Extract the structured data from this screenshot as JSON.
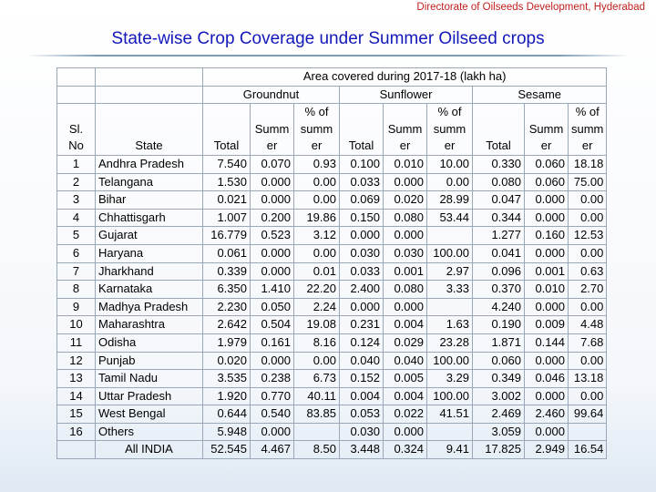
{
  "header": {
    "organization": "Directorate of Oilseeds Development, Hyderabad",
    "title": "State-wise Crop Coverage under Summer Oilseed crops"
  },
  "table": {
    "area_caption": "Area covered during 2017-18 (lakh ha)",
    "crops": [
      "Groundnut",
      "Sunflower",
      "Sesame"
    ],
    "col_headers": {
      "sl": [
        "Sl.",
        "No"
      ],
      "state": "State",
      "total": "Total",
      "summer": [
        "Summ",
        "er"
      ],
      "pct": [
        "% of",
        "summ",
        "er"
      ],
      "pct_first": [
        "% of",
        "summ",
        "er"
      ]
    },
    "rows": [
      {
        "no": "1",
        "state": "Andhra Pradesh",
        "g_total": "7.540",
        "g_summer": "0.070",
        "g_pct": "0.93",
        "s_total": "0.100",
        "s_summer": "0.010",
        "s_pct": "10.00",
        "se_total": "0.330",
        "se_summer": "0.060",
        "se_pct": "18.18"
      },
      {
        "no": "2",
        "state": "Telangana",
        "g_total": "1.530",
        "g_summer": "0.000",
        "g_pct": "0.00",
        "s_total": "0.033",
        "s_summer": "0.000",
        "s_pct": "0.00",
        "se_total": "0.080",
        "se_summer": "0.060",
        "se_pct": "75.00"
      },
      {
        "no": "3",
        "state": "Bihar",
        "g_total": "0.021",
        "g_summer": "0.000",
        "g_pct": "0.00",
        "s_total": "0.069",
        "s_summer": "0.020",
        "s_pct": "28.99",
        "se_total": "0.047",
        "se_summer": "0.000",
        "se_pct": "0.00"
      },
      {
        "no": "4",
        "state": "Chhattisgarh",
        "g_total": "1.007",
        "g_summer": "0.200",
        "g_pct": "19.86",
        "s_total": "0.150",
        "s_summer": "0.080",
        "s_pct": "53.44",
        "se_total": "0.344",
        "se_summer": "0.000",
        "se_pct": "0.00"
      },
      {
        "no": "5",
        "state": "Gujarat",
        "g_total": "16.779",
        "g_summer": "0.523",
        "g_pct": "3.12",
        "s_total": "0.000",
        "s_summer": "0.000",
        "s_pct": "",
        "se_total": "1.277",
        "se_summer": "0.160",
        "se_pct": "12.53"
      },
      {
        "no": "6",
        "state": "Haryana",
        "g_total": "0.061",
        "g_summer": "0.000",
        "g_pct": "0.00",
        "s_total": "0.030",
        "s_summer": "0.030",
        "s_pct": "100.00",
        "se_total": "0.041",
        "se_summer": "0.000",
        "se_pct": "0.00"
      },
      {
        "no": "7",
        "state": "Jharkhand",
        "g_total": "0.339",
        "g_summer": "0.000",
        "g_pct": "0.01",
        "s_total": "0.033",
        "s_summer": "0.001",
        "s_pct": "2.97",
        "se_total": "0.096",
        "se_summer": "0.001",
        "se_pct": "0.63"
      },
      {
        "no": "8",
        "state": "Karnataka",
        "g_total": "6.350",
        "g_summer": "1.410",
        "g_pct": "22.20",
        "s_total": "2.400",
        "s_summer": "0.080",
        "s_pct": "3.33",
        "se_total": "0.370",
        "se_summer": "0.010",
        "se_pct": "2.70"
      },
      {
        "no": "9",
        "state": "Madhya Pradesh",
        "g_total": "2.230",
        "g_summer": "0.050",
        "g_pct": "2.24",
        "s_total": "0.000",
        "s_summer": "0.000",
        "s_pct": "",
        "se_total": "4.240",
        "se_summer": "0.000",
        "se_pct": "0.00"
      },
      {
        "no": "10",
        "state": "Maharashtra",
        "g_total": "2.642",
        "g_summer": "0.504",
        "g_pct": "19.08",
        "s_total": "0.231",
        "s_summer": "0.004",
        "s_pct": "1.63",
        "se_total": "0.190",
        "se_summer": "0.009",
        "se_pct": "4.48"
      },
      {
        "no": "11",
        "state": "Odisha",
        "g_total": "1.979",
        "g_summer": "0.161",
        "g_pct": "8.16",
        "s_total": "0.124",
        "s_summer": "0.029",
        "s_pct": "23.28",
        "se_total": "1.871",
        "se_summer": "0.144",
        "se_pct": "7.68"
      },
      {
        "no": "12",
        "state": "Punjab",
        "g_total": "0.020",
        "g_summer": "0.000",
        "g_pct": "0.00",
        "s_total": "0.040",
        "s_summer": "0.040",
        "s_pct": "100.00",
        "se_total": "0.060",
        "se_summer": "0.000",
        "se_pct": "0.00"
      },
      {
        "no": "13",
        "state": "Tamil Nadu",
        "g_total": "3.535",
        "g_summer": "0.238",
        "g_pct": "6.73",
        "s_total": "0.152",
        "s_summer": "0.005",
        "s_pct": "3.29",
        "se_total": "0.349",
        "se_summer": "0.046",
        "se_pct": "13.18"
      },
      {
        "no": "14",
        "state": "Uttar Pradesh",
        "g_total": "1.920",
        "g_summer": "0.770",
        "g_pct": "40.11",
        "s_total": "0.004",
        "s_summer": "0.004",
        "s_pct": "100.00",
        "se_total": "3.002",
        "se_summer": "0.000",
        "se_pct": "0.00"
      },
      {
        "no": "15",
        "state": "West Bengal",
        "g_total": "0.644",
        "g_summer": "0.540",
        "g_pct": "83.85",
        "s_total": "0.053",
        "s_summer": "0.022",
        "s_pct": "41.51",
        "se_total": "2.469",
        "se_summer": "2.460",
        "se_pct": "99.64"
      },
      {
        "no": "16",
        "state": "Others",
        "g_total": "5.948",
        "g_summer": "0.000",
        "g_pct": "",
        "s_total": "0.030",
        "s_summer": "0.000",
        "s_pct": "",
        "se_total": "3.059",
        "se_summer": "0.000",
        "se_pct": ""
      }
    ],
    "total_row": {
      "no": "",
      "state": "All INDIA",
      "g_total": "52.545",
      "g_summer": "4.467",
      "g_pct": "8.50",
      "s_total": "3.448",
      "s_summer": "0.324",
      "s_pct": "9.41",
      "se_total": "17.825",
      "se_summer": "2.949",
      "se_pct": "16.54"
    }
  },
  "colors": {
    "title": "#1418b8",
    "organization": "#c0201e",
    "grid": "#9aa7b6"
  }
}
